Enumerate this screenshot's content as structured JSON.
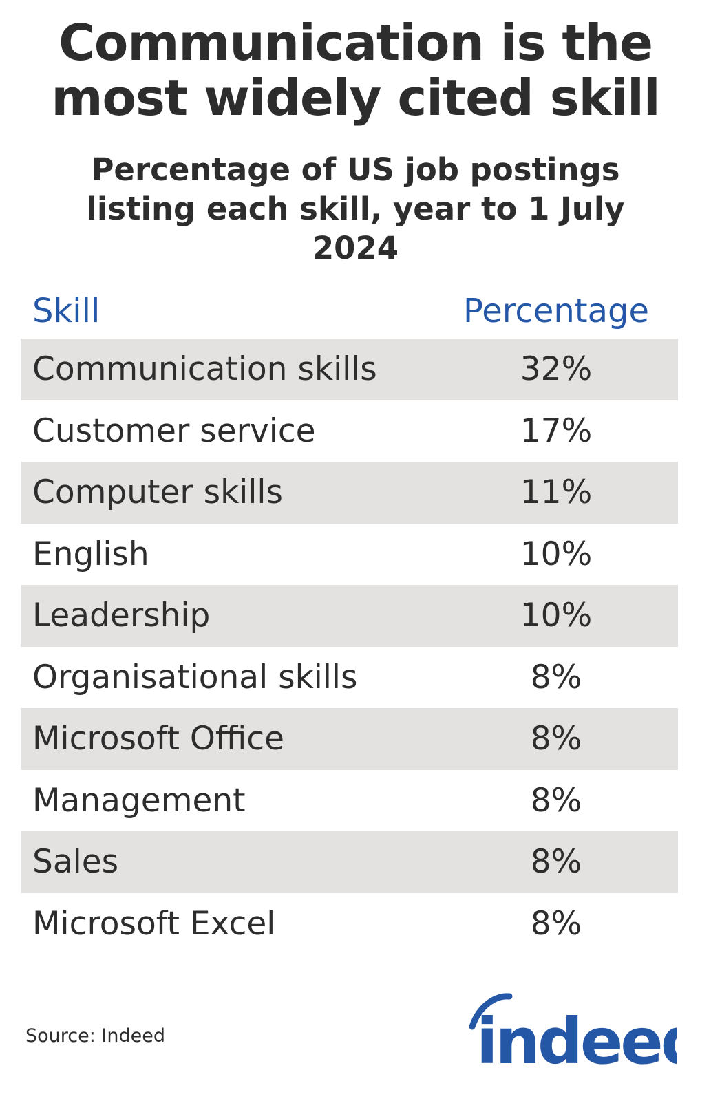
{
  "title": "Communication is the most widely cited skill",
  "subtitle": "Percentage of US job postings listing each skill, year to 1 July 2024",
  "source": "Source: Indeed",
  "logo_text": "indeed",
  "colors": {
    "header_text": "#2557a7",
    "row_shade": "#e4e2e0",
    "body_text": "#2d2d2d",
    "brand": "#2557a7"
  },
  "chart_data": {
    "type": "table",
    "columns": [
      "Skill",
      "Percentage"
    ],
    "rows": [
      {
        "skill": "Communication skills",
        "pct_label": "32%",
        "value": 32
      },
      {
        "skill": "Customer service",
        "pct_label": "17%",
        "value": 17
      },
      {
        "skill": "Computer skills",
        "pct_label": "11%",
        "value": 11
      },
      {
        "skill": "English",
        "pct_label": "10%",
        "value": 10
      },
      {
        "skill": "Leadership",
        "pct_label": "10%",
        "value": 10
      },
      {
        "skill": "Organisational skills",
        "pct_label": "8%",
        "value": 8
      },
      {
        "skill": "Microsoft Office",
        "pct_label": "8%",
        "value": 8
      },
      {
        "skill": "Management",
        "pct_label": "8%",
        "value": 8
      },
      {
        "skill": "Sales",
        "pct_label": "8%",
        "value": 8
      },
      {
        "skill": "Microsoft Excel",
        "pct_label": "8%",
        "value": 8
      }
    ]
  }
}
